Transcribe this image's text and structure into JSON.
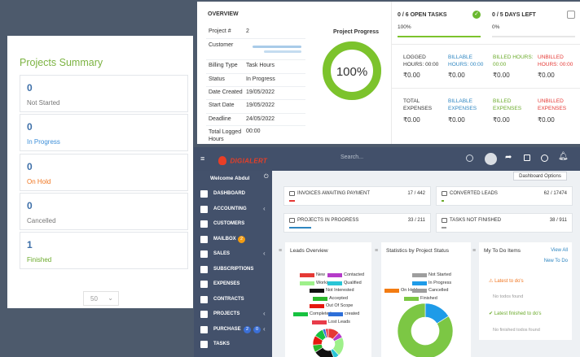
{
  "summary": {
    "title": "Projects Summary",
    "items": [
      {
        "count": "0",
        "label": "Not Started",
        "color": "#777777"
      },
      {
        "count": "0",
        "label": "In Progress",
        "color": "#3d8fd9"
      },
      {
        "count": "0",
        "label": "On Hold",
        "color": "#f0751f"
      },
      {
        "count": "0",
        "label": "Cancelled",
        "color": "#777777"
      },
      {
        "count": "1",
        "label": "Finished",
        "color": "#6aaa2a"
      }
    ],
    "per_page": "50"
  },
  "overview": {
    "heading": "OVERVIEW",
    "fields": [
      {
        "label": "Project #",
        "value": "2"
      },
      {
        "label": "Customer",
        "value": ""
      },
      {
        "label": "Billing Type",
        "value": "Task Hours"
      },
      {
        "label": "Status",
        "value": "In Progress"
      },
      {
        "label": "Date Created",
        "value": "19/05/2022"
      },
      {
        "label": "Start Date",
        "value": "19/05/2022"
      },
      {
        "label": "Deadline",
        "value": "24/05/2022"
      },
      {
        "label": "Total Logged Hours",
        "value": "00:00"
      }
    ],
    "progress_title": "Project Progress",
    "progress_value": "100%",
    "progress_fraction": 1.0,
    "tasks": {
      "label": "0 / 6 OPEN TASKS",
      "percent": "100%",
      "fraction": 1.0
    },
    "days": {
      "label": "0 / 5 DAYS LEFT",
      "percent": "0%",
      "fraction": 0.0
    },
    "hours": [
      {
        "label": "LOGGED HOURS:",
        "time": "00:00",
        "value": "₹0.00",
        "color": "#333333"
      },
      {
        "label": "BILLABLE HOURS:",
        "time": "00:00",
        "value": "₹0.00",
        "color": "#2e86c1"
      },
      {
        "label": "BILLED HOURS:",
        "time": "00:00",
        "value": "₹0.00",
        "color": "#6aaa2a"
      },
      {
        "label": "UNBILLED HOURS:",
        "time": "00:00",
        "value": "₹0.00",
        "color": "#e53935"
      }
    ],
    "expenses": [
      {
        "label1": "TOTAL",
        "label2": "EXPENSES",
        "value": "₹0.00",
        "color": "#333333"
      },
      {
        "label1": "BILLABLE",
        "label2": "EXPENSES",
        "value": "₹0.00",
        "color": "#2e86c1"
      },
      {
        "label1": "BILLED",
        "label2": "EXPENSES",
        "value": "₹0.00",
        "color": "#6aaa2a"
      },
      {
        "label1": "UNBILLED",
        "label2": "EXPENSES",
        "value": "₹0.00",
        "color": "#e53935"
      }
    ]
  },
  "dashboard": {
    "logo": "DIGIALERT",
    "search_placeholder": "Search...",
    "options_label": "Dashboard Options",
    "welcome": "Welcome Abdul",
    "sidebar": [
      {
        "label": "DASHBOARD",
        "icon": "dashboard-icon",
        "chevron": false
      },
      {
        "label": "ACCOUNTING",
        "icon": "dollar-icon",
        "chevron": true
      },
      {
        "label": "CUSTOMERS",
        "icon": "user-icon",
        "chevron": false
      },
      {
        "label": "MAILBOX",
        "icon": "envelope-icon",
        "chevron": false,
        "badge": "2",
        "badge_color": "#f39c12"
      },
      {
        "label": "SALES",
        "icon": "balance-icon",
        "chevron": true
      },
      {
        "label": "SUBSCRIPTIONS",
        "icon": "repeat-icon",
        "chevron": false
      },
      {
        "label": "EXPENSES",
        "icon": "file-icon",
        "chevron": false
      },
      {
        "label": "CONTRACTS",
        "icon": "document-icon",
        "chevron": false
      },
      {
        "label": "PROJECTS",
        "icon": "bars-icon",
        "chevron": true
      },
      {
        "label": "PURCHASE",
        "icon": "cart-icon",
        "chevron": true,
        "badge": "2",
        "badge2": "0"
      },
      {
        "label": "TASKS",
        "icon": "tasks-icon",
        "chevron": false
      }
    ],
    "cards": [
      {
        "title": "INVOICES AWAITING PAYMENT",
        "count": "17 / 442",
        "fraction": 0.04,
        "color": "#e53935"
      },
      {
        "title": "CONVERTED LEADS",
        "count": "62 / 17474",
        "fraction": 0.004,
        "color": "#6aaa2a"
      },
      {
        "title": "PROJECTS IN PROGRESS",
        "count": "33 / 211",
        "fraction": 0.16,
        "color": "#2e86c1"
      },
      {
        "title": "TASKS NOT FINISHED",
        "count": "38 / 911",
        "fraction": 0.04,
        "color": "#999999"
      }
    ],
    "leads": {
      "title": "Leads Overview",
      "legend": [
        {
          "name": "New",
          "color": "#e53935"
        },
        {
          "name": "Contacted",
          "color": "#b53bc9"
        },
        {
          "name": "Working",
          "color": "#9ef08a"
        },
        {
          "name": "Qualified",
          "color": "#29c5d6"
        },
        {
          "name": "Not Interested",
          "color": "#111111"
        },
        {
          "name": "Accepted",
          "color": "#2db82d"
        },
        {
          "name": "Out Of Scope",
          "color": "#e5180f"
        },
        {
          "name": "Completed",
          "color": "#17c240"
        },
        {
          "name": "created",
          "color": "#2e6fd8"
        },
        {
          "name": "Lost Leads",
          "color": "#e83c4a"
        }
      ],
      "slices": [
        {
          "value": 12,
          "color": "#e53935"
        },
        {
          "value": 6,
          "color": "#b53bc9"
        },
        {
          "value": 20,
          "color": "#9ef08a"
        },
        {
          "value": 6,
          "color": "#29c5d6"
        },
        {
          "value": 22,
          "color": "#111111"
        },
        {
          "value": 8,
          "color": "#2db82d"
        },
        {
          "value": 10,
          "color": "#e5180f"
        },
        {
          "value": 10,
          "color": "#17c240"
        },
        {
          "value": 3,
          "color": "#2e6fd8"
        },
        {
          "value": 3,
          "color": "#e83c4a"
        }
      ]
    },
    "status_chart": {
      "title": "Statistics by Project Status",
      "legend": [
        {
          "name": "Not Started",
          "color": "#9e9e9e"
        },
        {
          "name": "In Progress",
          "color": "#1e9be8"
        },
        {
          "name": "On Hold",
          "color": "#f37c12"
        },
        {
          "name": "Cancelled",
          "color": "#9e9e9e"
        },
        {
          "name": "Finished",
          "color": "#7cc744"
        }
      ],
      "slices": [
        {
          "value": 16,
          "color": "#1e9be8"
        },
        {
          "value": 84,
          "color": "#7cc744"
        }
      ]
    },
    "todo": {
      "title": "My To Do Items",
      "view_all": "View All",
      "new_todo": "New To Do",
      "latest": "Latest to do's",
      "no_todos": "No todos found",
      "finished": "Latest finished to do's",
      "no_finished": "No finished todos found"
    }
  }
}
